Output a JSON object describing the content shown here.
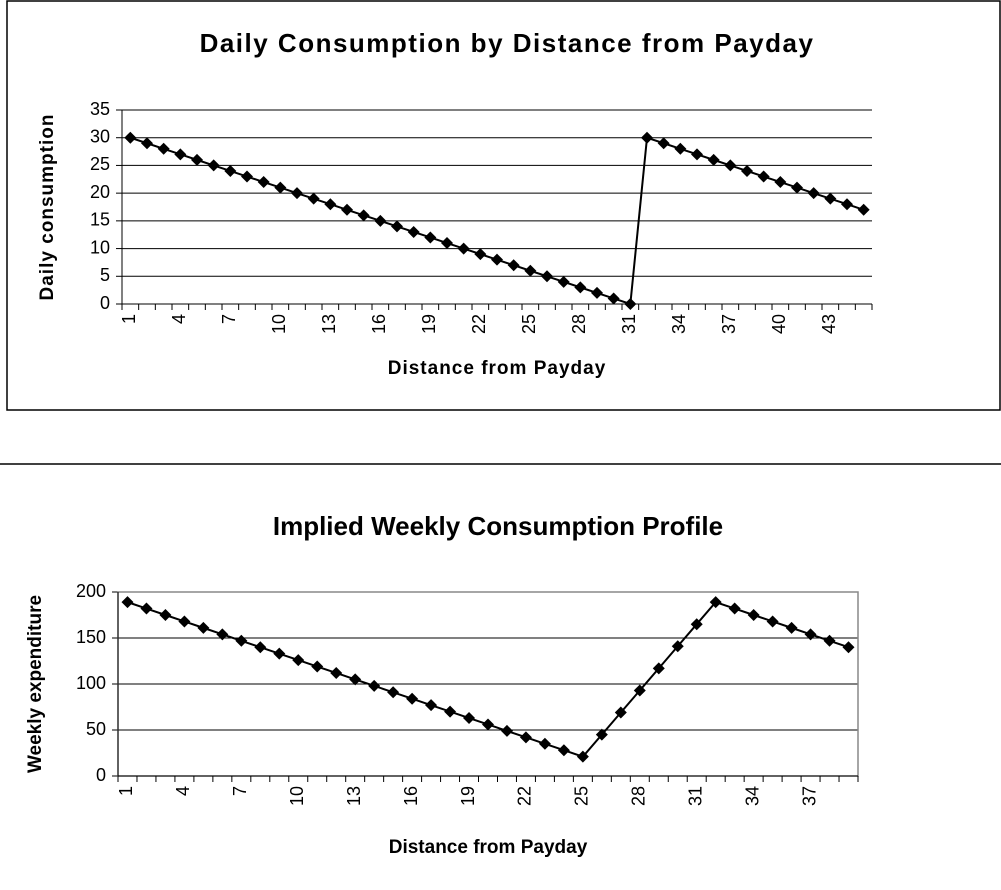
{
  "chart_data": [
    {
      "type": "line",
      "title": "Daily Consumption by Distance from Payday",
      "x_label": "Distance from Payday",
      "y_label": "Daily consumption",
      "categories": [
        1,
        null,
        null,
        4,
        null,
        null,
        7,
        null,
        null,
        10,
        null,
        null,
        13,
        null,
        null,
        16,
        null,
        null,
        19,
        null,
        null,
        22,
        null,
        null,
        25,
        null,
        null,
        28,
        null,
        null,
        31,
        null,
        null,
        34,
        null,
        null,
        37,
        null,
        null,
        40,
        null,
        null,
        43,
        null,
        null
      ],
      "series": [
        {
          "name": "Daily consumption",
          "color": "#000000",
          "values": [
            30,
            29,
            28,
            27,
            26,
            25,
            24,
            23,
            22,
            21,
            20,
            19,
            18,
            17,
            16,
            15,
            14,
            13,
            12,
            11,
            10,
            9,
            8,
            7,
            6,
            5,
            4,
            3,
            2,
            1,
            0,
            30,
            29,
            28,
            27,
            26,
            25,
            24,
            23,
            22,
            21,
            20,
            19,
            18,
            17
          ]
        }
      ],
      "ylim": [
        0,
        35
      ],
      "yticks": [
        0,
        5,
        10,
        15,
        20,
        25,
        30,
        35
      ],
      "grid": true
    },
    {
      "type": "line",
      "title": "Implied Weekly Consumption Profile",
      "x_label": "Distance from Payday",
      "y_label": "Weekly expenditure",
      "categories": [
        1,
        null,
        null,
        4,
        null,
        null,
        7,
        null,
        null,
        10,
        null,
        null,
        13,
        null,
        null,
        16,
        null,
        null,
        19,
        null,
        null,
        22,
        null,
        null,
        25,
        null,
        null,
        28,
        null,
        null,
        31,
        null,
        null,
        34,
        null,
        null,
        37,
        null,
        null
      ],
      "series": [
        {
          "name": "Weekly expenditure",
          "color": "#000000",
          "values": [
            189,
            182,
            175,
            168,
            161,
            154,
            147,
            140,
            133,
            126,
            119,
            112,
            105,
            98,
            91,
            84,
            77,
            70,
            63,
            56,
            49,
            42,
            35,
            28,
            21,
            45,
            69,
            93,
            117,
            141,
            165,
            189,
            182,
            175,
            168,
            161,
            154,
            147,
            140
          ]
        }
      ],
      "ylim": [
        0,
        200
      ],
      "yticks": [
        0,
        50,
        100,
        150,
        200
      ],
      "grid": true
    }
  ]
}
